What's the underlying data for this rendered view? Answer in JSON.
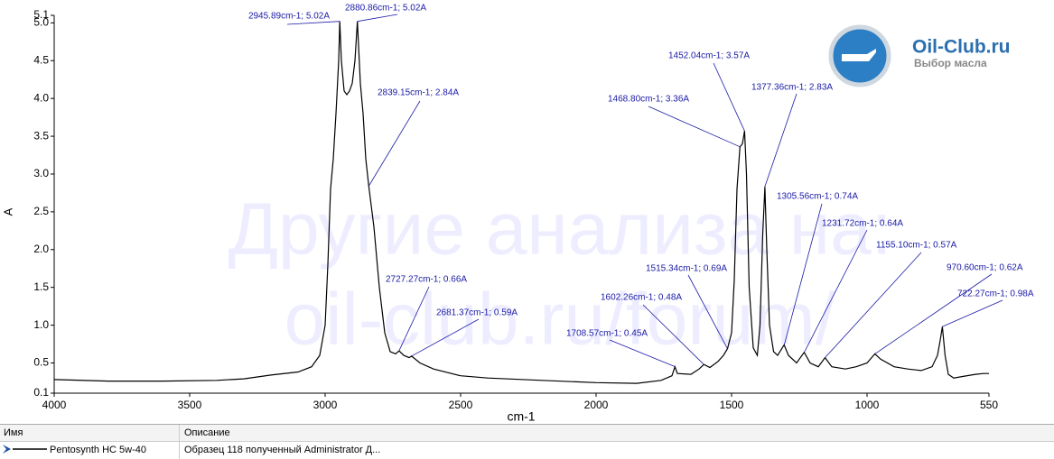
{
  "chart_data": {
    "type": "line",
    "x_label": "cm-1",
    "y_label": "A",
    "xlim": [
      4000,
      550
    ],
    "ylim": [
      0.1,
      5.1
    ],
    "xticks": [
      4000,
      3500,
      3000,
      2500,
      2000,
      1500,
      1000,
      550
    ],
    "yticks": [
      0.1,
      0.5,
      {
        "value": 1,
        "label": "1.0"
      },
      1.5,
      {
        "value": 2,
        "label": "2.0"
      },
      2.5,
      {
        "value": 3,
        "label": "3.0"
      },
      3.5,
      {
        "value": 4,
        "label": "4.0"
      },
      4.5,
      {
        "value": 5,
        "label": "5.0"
      },
      5.1
    ],
    "series": [
      {
        "name": "Pentosynth HC 5w-40",
        "color": "#000000",
        "x": [
          4000,
          3800,
          3600,
          3400,
          3300,
          3200,
          3100,
          3050,
          3020,
          3000,
          2990,
          2980,
          2970,
          2960,
          2950,
          2946,
          2940,
          2930,
          2920,
          2910,
          2900,
          2890,
          2881,
          2870,
          2860,
          2850,
          2839,
          2820,
          2800,
          2780,
          2760,
          2740,
          2727,
          2710,
          2690,
          2681,
          2650,
          2600,
          2500,
          2400,
          2200,
          2000,
          1850,
          1760,
          1720,
          1709,
          1700,
          1650,
          1620,
          1602,
          1580,
          1550,
          1530,
          1515,
          1500,
          1490,
          1480,
          1469,
          1460,
          1452,
          1445,
          1435,
          1420,
          1405,
          1395,
          1385,
          1377,
          1370,
          1360,
          1345,
          1330,
          1306,
          1290,
          1260,
          1232,
          1210,
          1180,
          1155,
          1130,
          1080,
          1040,
          1000,
          971,
          950,
          900,
          850,
          800,
          760,
          740,
          730,
          722,
          712,
          700,
          680,
          650,
          600,
          570,
          550
        ],
        "values": [
          0.28,
          0.26,
          0.26,
          0.27,
          0.29,
          0.34,
          0.38,
          0.45,
          0.6,
          1.0,
          1.8,
          2.8,
          3.2,
          3.8,
          4.5,
          5.02,
          4.5,
          4.1,
          4.05,
          4.1,
          4.2,
          4.5,
          5.02,
          4.2,
          3.8,
          3.2,
          2.84,
          2.3,
          1.5,
          0.9,
          0.65,
          0.62,
          0.66,
          0.6,
          0.57,
          0.59,
          0.5,
          0.42,
          0.33,
          0.3,
          0.27,
          0.24,
          0.23,
          0.27,
          0.33,
          0.45,
          0.36,
          0.35,
          0.42,
          0.48,
          0.44,
          0.52,
          0.6,
          0.69,
          0.9,
          1.6,
          2.8,
          3.36,
          3.4,
          3.57,
          3.0,
          1.5,
          0.7,
          0.6,
          1.0,
          2.2,
          2.83,
          2.0,
          1.0,
          0.65,
          0.6,
          0.74,
          0.6,
          0.5,
          0.64,
          0.5,
          0.45,
          0.57,
          0.45,
          0.42,
          0.45,
          0.5,
          0.62,
          0.55,
          0.45,
          0.42,
          0.4,
          0.45,
          0.6,
          0.8,
          0.98,
          0.6,
          0.35,
          0.3,
          0.32,
          0.35,
          0.36,
          0.36
        ]
      }
    ],
    "annotations": [
      {
        "text": "2945.89cm-1; 5.02A",
        "x": 2945.89,
        "y": 5.02
      },
      {
        "text": "2880.86cm-1; 5.02A",
        "x": 2880.86,
        "y": 5.02
      },
      {
        "text": "2839.15cm-1; 2.84A",
        "x": 2839.15,
        "y": 2.84
      },
      {
        "text": "2727.27cm-1; 0.66A",
        "x": 2727.27,
        "y": 0.66
      },
      {
        "text": "2681.37cm-1; 0.59A",
        "x": 2681.37,
        "y": 0.59
      },
      {
        "text": "1708.57cm-1; 0.45A",
        "x": 1708.57,
        "y": 0.45
      },
      {
        "text": "1602.26cm-1; 0.48A",
        "x": 1602.26,
        "y": 0.48
      },
      {
        "text": "1515.34cm-1; 0.69A",
        "x": 1515.34,
        "y": 0.69
      },
      {
        "text": "1468.80cm-1; 3.36A",
        "x": 1468.8,
        "y": 3.36
      },
      {
        "text": "1452.04cm-1; 3.57A",
        "x": 1452.04,
        "y": 3.57
      },
      {
        "text": "1377.36cm-1; 2.83A",
        "x": 1377.36,
        "y": 2.83
      },
      {
        "text": "1305.56cm-1; 0.74A",
        "x": 1305.56,
        "y": 0.74
      },
      {
        "text": "1231.72cm-1; 0.64A",
        "x": 1231.72,
        "y": 0.64
      },
      {
        "text": "1155.10cm-1; 0.57A",
        "x": 1155.1,
        "y": 0.57
      },
      {
        "text": "970.60cm-1; 0.62A",
        "x": 970.6,
        "y": 0.62
      },
      {
        "text": "722.27cm-1; 0.98A",
        "x": 722.27,
        "y": 0.98
      }
    ]
  },
  "watermark": [
    "Другие анализа на:",
    "oil-club.ru/forum/"
  ],
  "logo": {
    "title": "Oil-Club.ru",
    "subtitle": "Выбор масла"
  },
  "table": {
    "headers": [
      "Имя",
      "Описание"
    ],
    "rows": [
      [
        "Pentosynth HC 5w-40",
        "Образец 118 полученный Administrator Д..."
      ]
    ]
  }
}
